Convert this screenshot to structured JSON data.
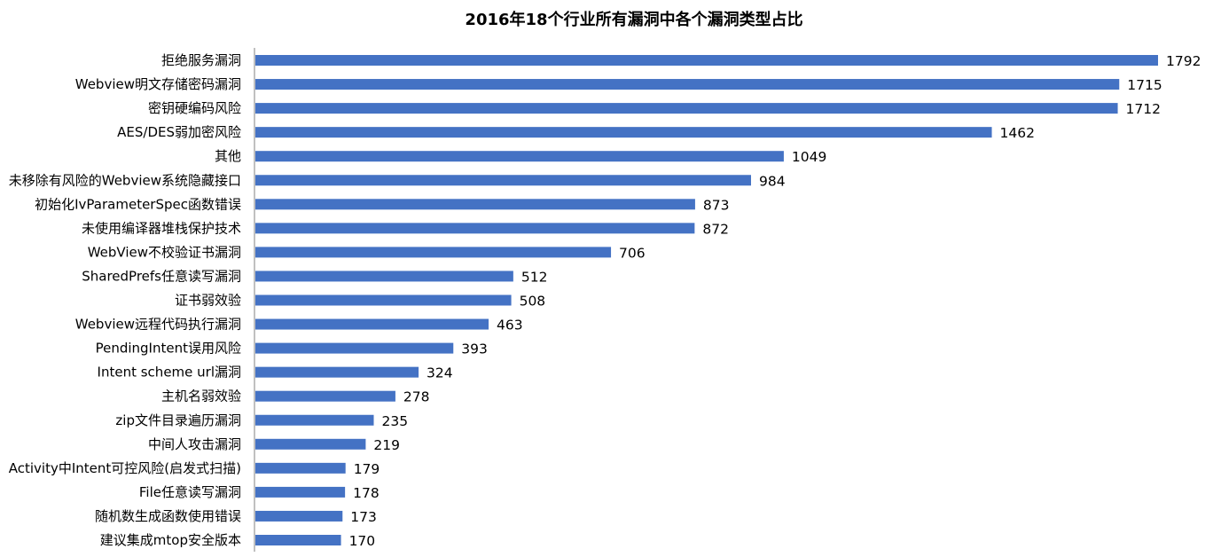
{
  "colors": {
    "bar": "#4472C4",
    "axis": "#808080",
    "text": "#000000",
    "background": "#FFFFFF"
  },
  "chart_data": {
    "type": "bar",
    "orientation": "horizontal",
    "title": "2016年18个行业所有漏洞中各个漏洞类型占比",
    "xlabel": "",
    "ylabel": "",
    "grid": false,
    "legend": "none",
    "xlim": [
      0,
      1800
    ],
    "categories": [
      "拒绝服务漏洞",
      "Webview明文存储密码漏洞",
      "密钥硬编码风险",
      "AES/DES弱加密风险",
      "其他",
      "未移除有风险的Webview系统隐藏接口",
      "初始化IvParameterSpec函数错误",
      "未使用编译器堆栈保护技术",
      "WebView不校验证书漏洞",
      "SharedPrefs任意读写漏洞",
      "证书弱效验",
      "Webview远程代码执行漏洞",
      "PendingIntent误用风险",
      "Intent scheme url漏洞",
      "主机名弱效验",
      "zip文件目录遍历漏洞",
      "中间人攻击漏洞",
      "Activity中Intent可控风险(启发式扫描)",
      "File任意读写漏洞",
      "随机数生成函数使用错误",
      "建议集成mtop安全版本"
    ],
    "values": [
      1792,
      1715,
      1712,
      1462,
      1049,
      984,
      873,
      872,
      706,
      512,
      508,
      463,
      393,
      324,
      278,
      235,
      219,
      179,
      178,
      173,
      170
    ],
    "value_labels": [
      "1792",
      "1715",
      "1712",
      "1462",
      "1049",
      "984",
      "873",
      "872",
      "706",
      "512",
      "508",
      "463",
      "393",
      "324",
      "278",
      "235",
      "219",
      "179",
      "178",
      "173",
      "170"
    ]
  }
}
